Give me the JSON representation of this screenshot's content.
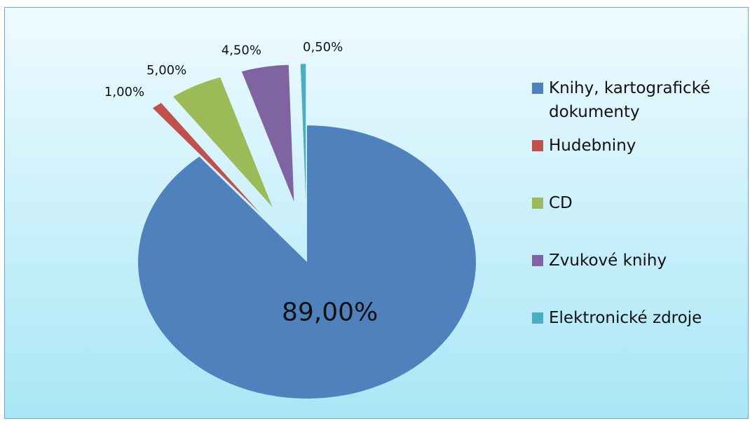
{
  "chart_data": {
    "type": "pie",
    "categories": [
      "Knihy, kartografické dokumenty",
      "Hudebniny",
      "CD",
      "Zvukové knihy",
      "Elektronické zdroje"
    ],
    "values": [
      89,
      1,
      5,
      4.5,
      0.5
    ],
    "value_labels": [
      "89,00%",
      "1,00%",
      "5,00%",
      "4,50%",
      "0,50%"
    ],
    "colors": [
      "#4f81bd",
      "#c0504d",
      "#9bbb59",
      "#8064a2",
      "#4bacc6"
    ],
    "legend": "right"
  }
}
